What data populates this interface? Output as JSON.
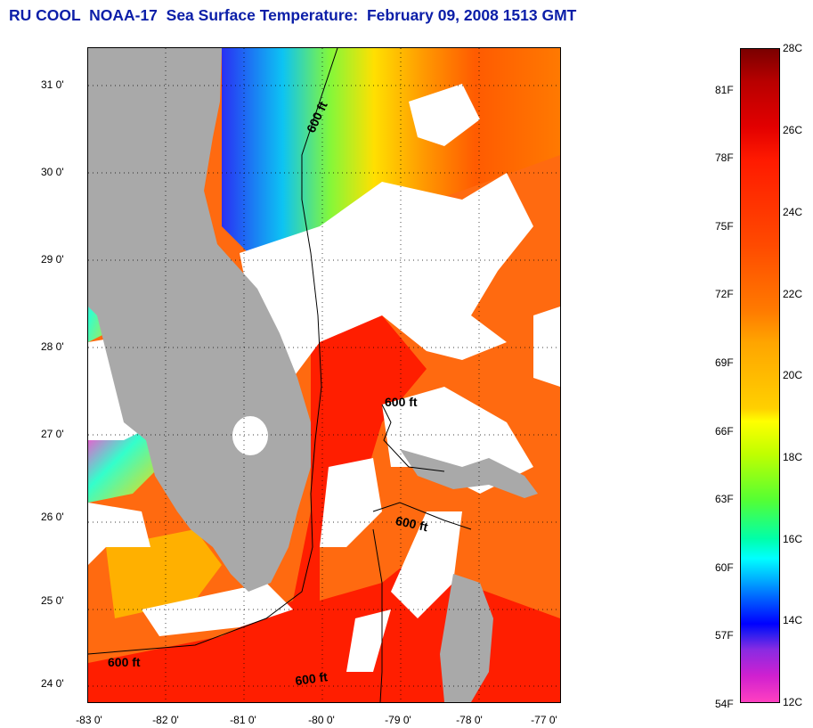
{
  "title": "RU COOL  NOAA-17  Sea Surface Temperature:  February 09, 2008 1513 GMT",
  "map": {
    "lat_labels": [
      "31 0'",
      "30 0'",
      "29 0'",
      "28 0'",
      "27 0'",
      "26 0'",
      "25 0'",
      "24 0'"
    ],
    "lon_labels": [
      "-83 0'",
      "-82 0'",
      "-81 0'",
      "-80 0'",
      "-79 0'",
      "-78 0'",
      "-77 0'"
    ],
    "isobath_labels": [
      "600 ft",
      "600 ft",
      "600 ft",
      "600 ft",
      "600 ft"
    ]
  },
  "colorbar": {
    "fahrenheit_labels": [
      "81F",
      "78F",
      "75F",
      "72F",
      "69F",
      "66F",
      "63F",
      "60F",
      "57F",
      "54F"
    ],
    "celsius_labels": [
      "28C",
      "26C",
      "24C",
      "22C",
      "20C",
      "18C",
      "16C",
      "14C",
      "12C"
    ]
  },
  "colors": {
    "title": "#0b1ea8",
    "land": "#a9a9a9",
    "clouds": "#ffffff",
    "warm_water": "#ff3300",
    "cool_water": "#0033ff"
  }
}
